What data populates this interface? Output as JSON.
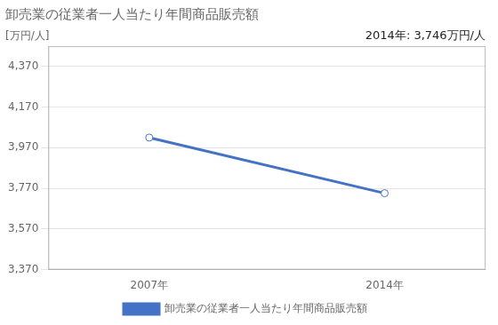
{
  "chart_data": {
    "type": "line",
    "title": "卸売業の従業者一人当たり年間商品販売額",
    "ylabel": "[万円/人]",
    "annotation": "2014年: 3,746万円/人",
    "x": [
      2007,
      2014
    ],
    "series": [
      {
        "name": "卸売業の従業者一人当たり年間商品販売額",
        "color": "#4472C4",
        "values": [
          4020,
          3746
        ]
      }
    ],
    "xlim": [
      2004.0,
      2017.0
    ],
    "xticks": [
      {
        "value": 2007,
        "label": "2007年"
      },
      {
        "value": 2014,
        "label": "2014年"
      }
    ],
    "ylim": [
      3370,
      4470
    ],
    "yticks": [
      {
        "value": 3370,
        "label": "3,370"
      },
      {
        "value": 3570,
        "label": "3,570"
      },
      {
        "value": 3770,
        "label": "3,770"
      },
      {
        "value": 3970,
        "label": "3,970"
      },
      {
        "value": 4170,
        "label": "4,170"
      },
      {
        "value": 4370,
        "label": "4,370"
      }
    ],
    "grid": "y",
    "legend": "bottom",
    "marker": "circle"
  }
}
